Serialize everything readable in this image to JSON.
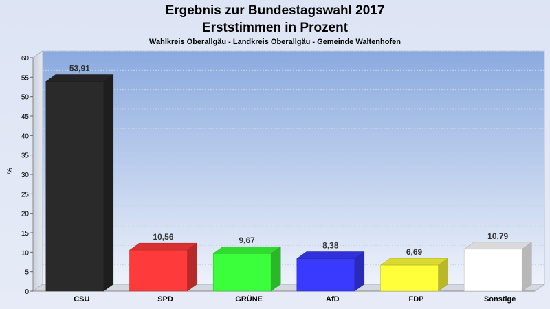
{
  "chart_data": {
    "type": "bar",
    "title": "Ergebnis zur Bundestagswahl 2017",
    "title2": "Erststimmen in Prozent",
    "subtitle": "Wahlkreis Oberallgäu - Landkreis Oberallgäu - Gemeinde Waltenhofen",
    "ylabel": "%",
    "ylim": [
      0,
      60
    ],
    "yticks": [
      0,
      5,
      10,
      15,
      20,
      25,
      30,
      35,
      40,
      45,
      50,
      55,
      60
    ],
    "categories": [
      "CSU",
      "SPD",
      "GRÜNE",
      "AfD",
      "FDP",
      "Sonstige"
    ],
    "values": [
      53.91,
      10.56,
      9.67,
      8.38,
      6.69,
      10.79
    ],
    "value_labels": [
      "53,91",
      "10,56",
      "9,67",
      "8,38",
      "6,69",
      "10,79"
    ],
    "colors": [
      "#2a2a2a",
      "#ff3a3a",
      "#3aff3a",
      "#3a3aff",
      "#ffff3a",
      "#ffffff"
    ],
    "grid": true,
    "legend": "none"
  }
}
